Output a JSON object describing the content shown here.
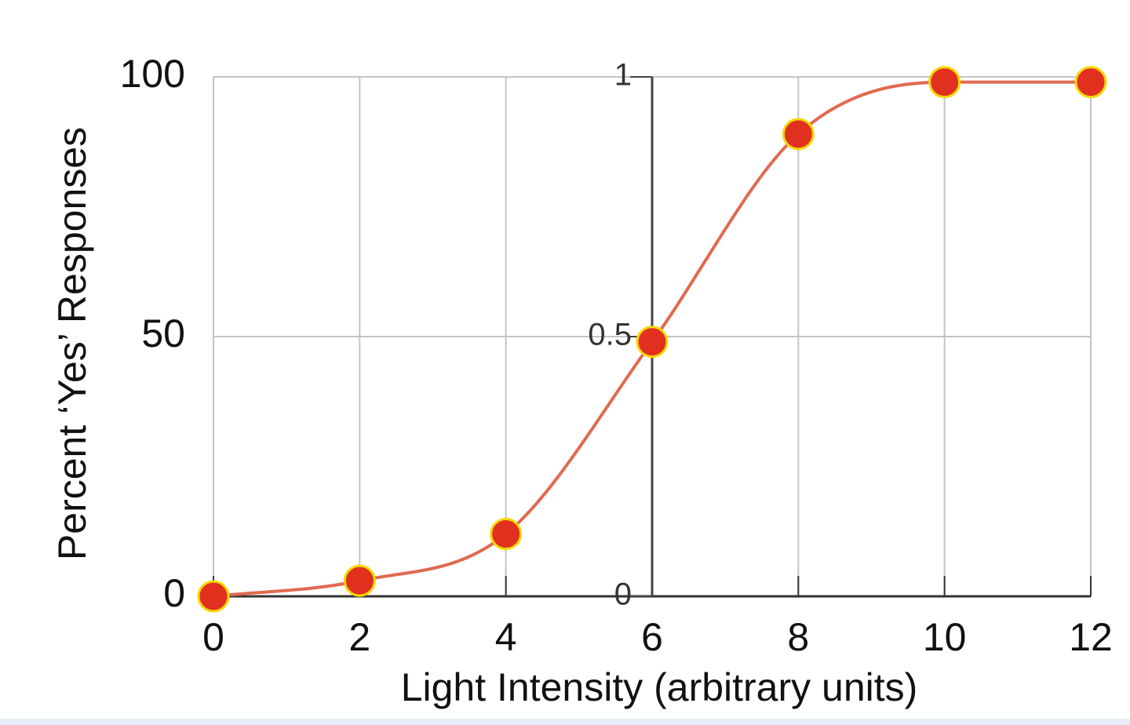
{
  "chart_data": {
    "type": "line",
    "x_label": "Light Intensity (arbitrary units)",
    "y_label": "Percent ‘Yes’ Responses",
    "x": [
      0,
      2,
      4,
      6,
      8,
      10,
      12
    ],
    "series": [
      {
        "values": [
          0,
          3,
          12,
          49,
          89,
          99,
          99
        ],
        "color": "#e2301f",
        "marker_edge_color": "#f5d800",
        "line_color": "#e06a50",
        "smooth": true
      }
    ],
    "xlim": [
      0,
      12
    ],
    "xticks": [
      0,
      2,
      4,
      6,
      8,
      10,
      12
    ],
    "ylim": [
      0,
      100
    ],
    "yticks": [
      0,
      50,
      100
    ],
    "y2lim": [
      0,
      1
    ],
    "y2ticks": [
      0,
      0.5,
      1
    ],
    "grid": true
  }
}
